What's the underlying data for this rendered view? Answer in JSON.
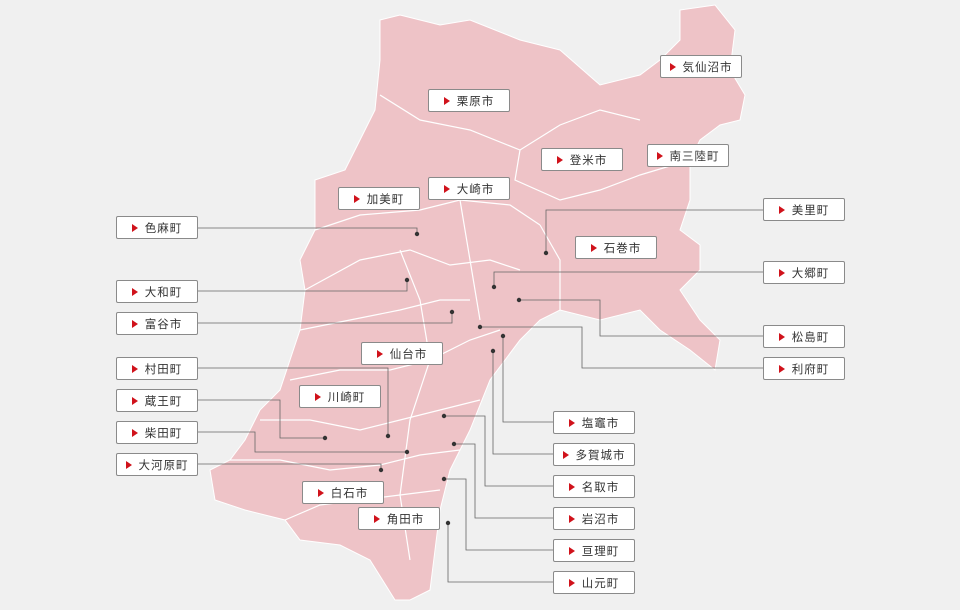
{
  "labels": [
    {
      "name": "気仙沼市"
    },
    {
      "name": "栗原市"
    },
    {
      "name": "登米市"
    },
    {
      "name": "南三陸町"
    },
    {
      "name": "加美町"
    },
    {
      "name": "大崎市"
    },
    {
      "name": "美里町"
    },
    {
      "name": "色麻町"
    },
    {
      "name": "石巻市"
    },
    {
      "name": "大郷町"
    },
    {
      "name": "大和町"
    },
    {
      "name": "富谷市"
    },
    {
      "name": "松島町"
    },
    {
      "name": "仙台市"
    },
    {
      "name": "利府町"
    },
    {
      "name": "村田町"
    },
    {
      "name": "川崎町"
    },
    {
      "name": "蔵王町"
    },
    {
      "name": "塩竈市"
    },
    {
      "name": "柴田町"
    },
    {
      "name": "多賀城市"
    },
    {
      "name": "大河原町"
    },
    {
      "name": "名取市"
    },
    {
      "name": "白石市"
    },
    {
      "name": "岩沼市"
    },
    {
      "name": "角田市"
    },
    {
      "name": "亘理町"
    },
    {
      "name": "山元町"
    }
  ]
}
